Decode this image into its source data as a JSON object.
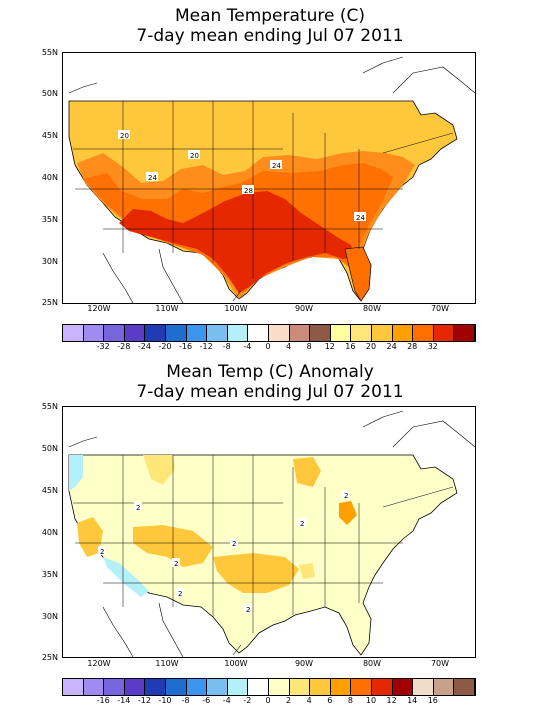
{
  "map1": {
    "title_line1": "Mean Temperature (C)",
    "title_line2": "7-day mean ending Jul 07 2011",
    "lat_labels": [
      "55N",
      "50N",
      "45N",
      "40N",
      "35N",
      "30N",
      "25N"
    ],
    "lon_labels": [
      "120W",
      "110W",
      "100W",
      "90W",
      "80W",
      "70W"
    ],
    "contour_labels": [
      "20",
      "20",
      "24",
      "24",
      "28",
      "24"
    ],
    "colorbar_colors": [
      "#c8b4ff",
      "#a08cf0",
      "#7864dc",
      "#5a3cc8",
      "#1e3cb4",
      "#1e6ed2",
      "#3c96f0",
      "#78bef0",
      "#b4f0fa",
      "#ffffff",
      "#fadcc8",
      "#c88c78",
      "#8c5a46",
      "#ffffa0",
      "#ffe678",
      "#ffc83c",
      "#ffa000",
      "#ff6e00",
      "#e62800",
      "#a00000"
    ],
    "colorbar_labels": [
      "-32",
      "-28",
      "-24",
      "-20",
      "-16",
      "-12",
      "-8",
      "-4",
      "0",
      "4",
      "8",
      "12",
      "16",
      "20",
      "24",
      "28",
      "32"
    ]
  },
  "map2": {
    "title_line1": "Mean Temp (C) Anomaly",
    "title_line2": "7-day mean ending Jul 07 2011",
    "lat_labels": [
      "55N",
      "50N",
      "45N",
      "40N",
      "35N",
      "30N",
      "25N"
    ],
    "lon_labels": [
      "120W",
      "110W",
      "100W",
      "90W",
      "80W",
      "70W"
    ],
    "contour_labels": [
      "2",
      "2",
      "2",
      "2",
      "2",
      "2",
      "2",
      "2"
    ],
    "colorbar_colors": [
      "#c8b4ff",
      "#a08cf0",
      "#7864dc",
      "#5a3cc8",
      "#1e3cb4",
      "#1e6ed2",
      "#3c96f0",
      "#78bef0",
      "#b4f0fa",
      "#ffffff",
      "#ffffc8",
      "#ffe678",
      "#ffc83c",
      "#ffa000",
      "#ff6e00",
      "#e62800",
      "#a00000",
      "#f0dcc8",
      "#c8a08c",
      "#8c5a46"
    ],
    "colorbar_labels": [
      "-16",
      "-14",
      "-12",
      "-10",
      "-8",
      "-6",
      "-4",
      "-2",
      "0",
      "2",
      "4",
      "6",
      "8",
      "10",
      "12",
      "14",
      "16"
    ]
  }
}
